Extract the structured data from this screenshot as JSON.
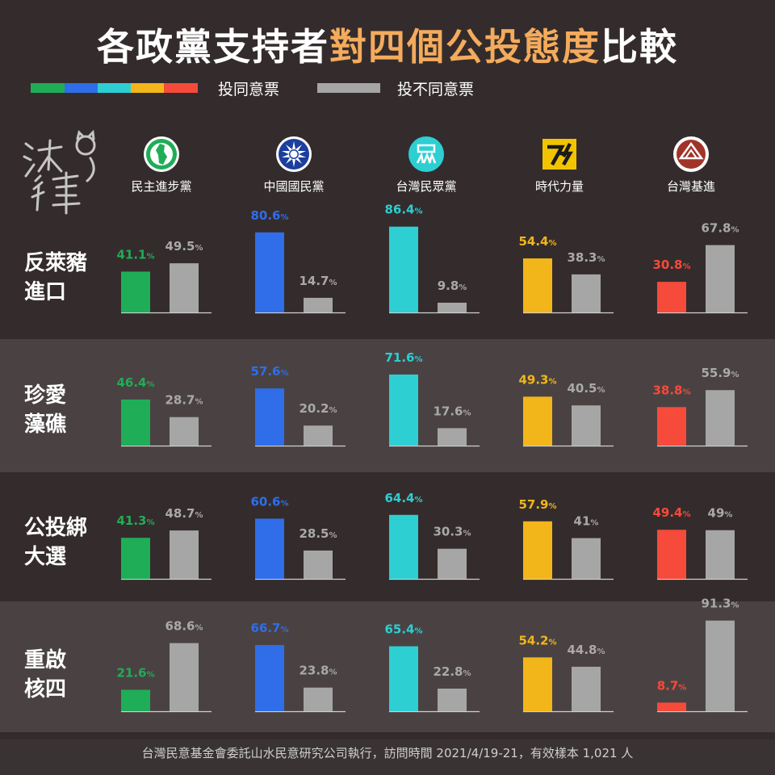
{
  "title": {
    "part1": "各政黨支持者",
    "part2": "對四個公投態度",
    "part3": "比較"
  },
  "legend": {
    "agree": "投同意票",
    "disagree": "投不同意票",
    "party_colors": [
      "#1fad57",
      "#2f6ee8",
      "#2dcfd3",
      "#f2b61a",
      "#f64a3b"
    ],
    "disagree_color": "#a6a6a6"
  },
  "signature": "沃草",
  "colors": {
    "background": "#342c2c",
    "band_alt": "#4a4242",
    "title_accent": "#f4ab5c"
  },
  "parties": [
    {
      "name": "民主進步黨",
      "icon": "dpp-logo-icon"
    },
    {
      "name": "中國國民黨",
      "icon": "kmt-logo-icon"
    },
    {
      "name": "台灣民眾黨",
      "icon": "tpp-logo-icon"
    },
    {
      "name": "時代力量",
      "icon": "npp-logo-icon"
    },
    {
      "name": "台灣基進",
      "icon": "tsp-logo-icon"
    }
  ],
  "rows": [
    {
      "label_line1": "反萊豬",
      "label_line2": "進口"
    },
    {
      "label_line1": "珍愛",
      "label_line2": "藻礁"
    },
    {
      "label_line1": "公投綁",
      "label_line2": "大選"
    },
    {
      "label_line1": "重啟",
      "label_line2": "核四"
    }
  ],
  "chart_data": {
    "type": "bar",
    "unit": "%",
    "categories": [
      "民主進步黨",
      "中國國民黨",
      "台灣民眾黨",
      "時代力量",
      "台灣基進"
    ],
    "panels": [
      {
        "topic": "反萊豬進口",
        "series": [
          {
            "name": "投同意票",
            "values": [
              41.1,
              80.6,
              86.4,
              54.4,
              30.8
            ]
          },
          {
            "name": "投不同意票",
            "values": [
              49.5,
              14.7,
              9.8,
              38.3,
              67.8
            ]
          }
        ]
      },
      {
        "topic": "珍愛藻礁",
        "series": [
          {
            "name": "投同意票",
            "values": [
              46.4,
              57.6,
              71.6,
              49.3,
              38.8
            ]
          },
          {
            "name": "投不同意票",
            "values": [
              28.7,
              20.2,
              17.6,
              40.5,
              55.9
            ]
          }
        ]
      },
      {
        "topic": "公投綁大選",
        "series": [
          {
            "name": "投同意票",
            "values": [
              41.3,
              60.6,
              64.4,
              57.9,
              49.4
            ]
          },
          {
            "name": "投不同意票",
            "values": [
              48.7,
              28.5,
              30.3,
              41,
              49
            ]
          }
        ]
      },
      {
        "topic": "重啟核四",
        "series": [
          {
            "name": "投同意票",
            "values": [
              21.6,
              66.7,
              65.4,
              54.2,
              8.7
            ]
          },
          {
            "name": "投不同意票",
            "values": [
              68.6,
              23.8,
              22.8,
              44.8,
              91.3
            ]
          }
        ]
      }
    ]
  },
  "footer": "台灣民意基金會委託山水民意研究公司執行，訪問時間 2021/4/19-21，有效樣本 1,021 人"
}
